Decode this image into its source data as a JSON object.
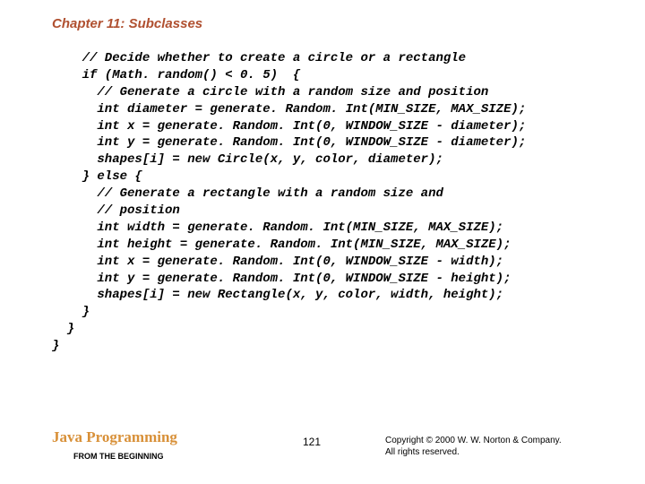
{
  "chapter_title": "Chapter 11: Subclasses",
  "chapter_title_color": "#b05030",
  "chapter_title_fontsize": 15,
  "code_lines": [
    "    // Decide whether to create a circle or a rectangle",
    "    if (Math. random() < 0. 5)  {",
    "      // Generate a circle with a random size and position",
    "      int diameter = generate. Random. Int(MIN_SIZE, MAX_SIZE);",
    "      int x = generate. Random. Int(0, WINDOW_SIZE - diameter);",
    "      int y = generate. Random. Int(0, WINDOW_SIZE - diameter);",
    "      shapes[i] = new Circle(x, y, color, diameter);",
    "    } else {",
    "      // Generate a rectangle with a random size and",
    "      // position",
    "      int width = generate. Random. Int(MIN_SIZE, MAX_SIZE);",
    "      int height = generate. Random. Int(MIN_SIZE, MAX_SIZE);",
    "      int x = generate. Random. Int(0, WINDOW_SIZE - width);",
    "      int y = generate. Random. Int(0, WINDOW_SIZE - height);",
    "      shapes[i] = new Rectangle(x, y, color, width, height);",
    "    }",
    "  }",
    "}"
  ],
  "code_color": "#000000",
  "code_fontsize": 14,
  "footer_title": "Java Programming",
  "footer_title_color": "#d89038",
  "footer_title_fontsize": 17,
  "footer_subtitle": "FROM THE BEGINNING",
  "footer_subtitle_color": "#000000",
  "footer_subtitle_fontsize": 9,
  "page_number": "121",
  "page_number_color": "#000000",
  "page_number_fontsize": 12,
  "copyright_line1": "Copyright © 2000 W. W. Norton & Company.",
  "copyright_line2": "All rights reserved.",
  "copyright_color": "#000000",
  "copyright_fontsize": 10,
  "background_color": "#ffffff"
}
